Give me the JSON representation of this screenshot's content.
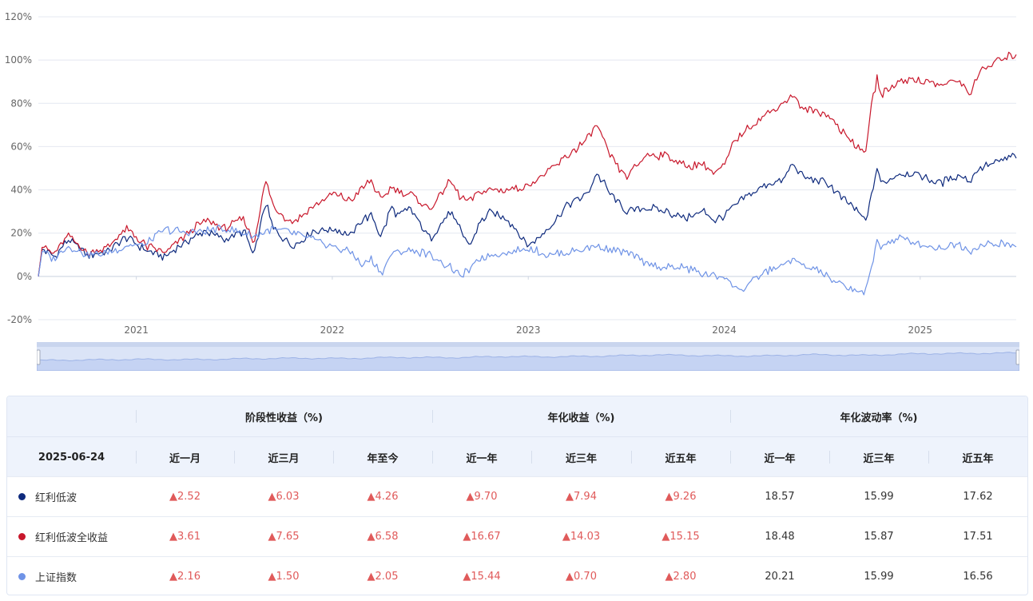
{
  "chart_data": {
    "type": "line",
    "x_ticks": [
      "2021",
      "2022",
      "2023",
      "2024",
      "2025"
    ],
    "y_ticks": [
      "120%",
      "100%",
      "80%",
      "60%",
      "40%",
      "20%",
      "0%",
      "-20%"
    ],
    "ylim": [
      -20,
      120
    ],
    "x_start": 2020.5,
    "x_end": 2025.49,
    "grid": true,
    "series": [
      {
        "name": "红利低波",
        "color": "#0e2a7d",
        "x": [
          2020.5,
          2020.52,
          2020.58,
          2020.65,
          2020.75,
          2020.85,
          2020.95,
          2021.05,
          2021.15,
          2021.25,
          2021.35,
          2021.45,
          2021.55,
          2021.6,
          2021.62,
          2021.66,
          2021.7,
          2021.75,
          2021.8,
          2021.9,
          2022.0,
          2022.1,
          2022.15,
          2022.2,
          2022.25,
          2022.3,
          2022.33,
          2022.4,
          2022.5,
          2022.6,
          2022.65,
          2022.7,
          2022.75,
          2022.8,
          2022.9,
          2023.0,
          2023.1,
          2023.2,
          2023.3,
          2023.35,
          2023.42,
          2023.5,
          2023.6,
          2023.7,
          2023.8,
          2023.9,
          2023.95,
          2024.0,
          2024.05,
          2024.1,
          2024.2,
          2024.3,
          2024.35,
          2024.4,
          2024.5,
          2024.55,
          2024.6,
          2024.65,
          2024.7,
          2024.72,
          2024.75,
          2024.78,
          2024.8,
          2024.85,
          2024.9,
          2025.0,
          2025.1,
          2025.2,
          2025.25,
          2025.3,
          2025.4,
          2025.49
        ],
        "values": [
          0,
          13,
          9,
          17,
          10,
          11,
          18,
          12,
          9,
          16,
          21,
          17,
          21,
          9,
          18,
          34,
          22,
          18,
          14,
          21,
          22,
          19,
          26,
          28,
          18,
          32,
          28,
          31,
          17,
          30,
          22,
          14,
          24,
          30,
          26,
          14,
          22,
          33,
          38,
          48,
          38,
          30,
          32,
          30,
          27,
          30,
          26,
          28,
          32,
          36,
          42,
          44,
          52,
          46,
          44,
          41,
          36,
          33,
          28,
          25,
          36,
          50,
          43,
          45,
          48,
          47,
          43,
          47,
          44,
          50,
          53,
          56
        ]
      },
      {
        "name": "红利低波全收益",
        "color": "#c8172b",
        "x": [
          2020.5,
          2020.52,
          2020.58,
          2020.65,
          2020.75,
          2020.85,
          2020.95,
          2021.05,
          2021.15,
          2021.25,
          2021.35,
          2021.45,
          2021.55,
          2021.6,
          2021.62,
          2021.66,
          2021.7,
          2021.75,
          2021.8,
          2021.9,
          2022.0,
          2022.1,
          2022.15,
          2022.2,
          2022.25,
          2022.3,
          2022.33,
          2022.4,
          2022.5,
          2022.6,
          2022.65,
          2022.7,
          2022.75,
          2022.8,
          2022.9,
          2023.0,
          2023.1,
          2023.2,
          2023.3,
          2023.35,
          2023.42,
          2023.5,
          2023.6,
          2023.7,
          2023.8,
          2023.9,
          2023.95,
          2024.0,
          2024.05,
          2024.1,
          2024.2,
          2024.3,
          2024.35,
          2024.4,
          2024.5,
          2024.55,
          2024.6,
          2024.65,
          2024.7,
          2024.72,
          2024.75,
          2024.78,
          2024.8,
          2024.85,
          2024.9,
          2025.0,
          2025.1,
          2025.2,
          2025.25,
          2025.3,
          2025.4,
          2025.49
        ],
        "values": [
          0,
          14,
          10,
          19,
          11,
          13,
          22,
          14,
          11,
          19,
          26,
          22,
          27,
          15,
          26,
          44,
          32,
          28,
          25,
          32,
          38,
          35,
          41,
          44,
          35,
          41,
          40,
          38,
          31,
          44,
          37,
          35,
          39,
          40,
          40,
          42,
          48,
          56,
          63,
          70,
          55,
          46,
          56,
          56,
          51,
          52,
          47,
          51,
          62,
          67,
          74,
          80,
          84,
          77,
          76,
          73,
          67,
          63,
          58,
          58,
          78,
          92,
          84,
          87,
          91,
          91,
          88,
          91,
          84,
          94,
          100,
          103
        ]
      },
      {
        "name": "上证指数",
        "color": "#6f93e6",
        "x": [
          2020.5,
          2020.52,
          2020.58,
          2020.65,
          2020.75,
          2020.85,
          2020.95,
          2021.05,
          2021.15,
          2021.25,
          2021.35,
          2021.45,
          2021.55,
          2021.6,
          2021.62,
          2021.66,
          2021.7,
          2021.75,
          2021.8,
          2021.9,
          2022.0,
          2022.1,
          2022.15,
          2022.2,
          2022.25,
          2022.3,
          2022.33,
          2022.4,
          2022.5,
          2022.6,
          2022.65,
          2022.7,
          2022.75,
          2022.8,
          2022.9,
          2023.0,
          2023.1,
          2023.2,
          2023.3,
          2023.35,
          2023.42,
          2023.5,
          2023.6,
          2023.7,
          2023.8,
          2023.9,
          2023.95,
          2024.0,
          2024.05,
          2024.1,
          2024.2,
          2024.3,
          2024.35,
          2024.4,
          2024.5,
          2024.55,
          2024.6,
          2024.65,
          2024.7,
          2024.72,
          2024.75,
          2024.78,
          2024.8,
          2024.85,
          2024.9,
          2025.0,
          2025.1,
          2025.2,
          2025.25,
          2025.3,
          2025.4,
          2025.49
        ],
        "values": [
          0,
          12,
          8,
          14,
          10,
          11,
          14,
          15,
          22,
          20,
          21,
          22,
          20,
          18,
          19,
          21,
          22,
          21,
          20,
          17,
          14,
          11,
          5,
          8,
          1,
          10,
          11,
          12,
          10,
          4,
          0,
          3,
          8,
          10,
          11,
          13,
          10,
          11,
          13,
          14,
          12,
          11,
          6,
          4,
          4,
          1,
          0,
          0,
          -5,
          -6,
          2,
          5,
          8,
          5,
          2,
          -2,
          -4,
          -6,
          -7,
          -8,
          3,
          17,
          14,
          16,
          18,
          15,
          13,
          15,
          12,
          14,
          15,
          14
        ]
      }
    ],
    "navigator": {
      "y": [
        20,
        22,
        24,
        23,
        26,
        28,
        27,
        31,
        30,
        34,
        33,
        36,
        40,
        37,
        36,
        41,
        38,
        44,
        45,
        47
      ]
    }
  },
  "table": {
    "groups": [
      "阶段性收益（%)",
      "年化收益（%)",
      "年化波动率（%)"
    ],
    "date": "2025-06-24",
    "columns": [
      "近一月",
      "近三月",
      "年至今",
      "近一年",
      "近三年",
      "近五年",
      "近一年",
      "近三年",
      "近五年"
    ],
    "rows": [
      {
        "name": "红利低波",
        "color": "#0e2a7d",
        "values": [
          "▲2.52",
          "▲6.03",
          "▲4.26",
          "▲9.70",
          "▲7.94",
          "▲9.26",
          "18.57",
          "15.99",
          "17.62"
        ]
      },
      {
        "name": "红利低波全收益",
        "color": "#c8172b",
        "values": [
          "▲3.61",
          "▲7.65",
          "▲6.58",
          "▲16.67",
          "▲14.03",
          "▲15.15",
          "18.48",
          "15.87",
          "17.51"
        ]
      },
      {
        "name": "上证指数",
        "color": "#6f93e6",
        "values": [
          "▲2.16",
          "▲1.50",
          "▲2.05",
          "▲15.44",
          "▲0.70",
          "▲2.80",
          "20.21",
          "15.99",
          "16.56"
        ]
      }
    ]
  }
}
